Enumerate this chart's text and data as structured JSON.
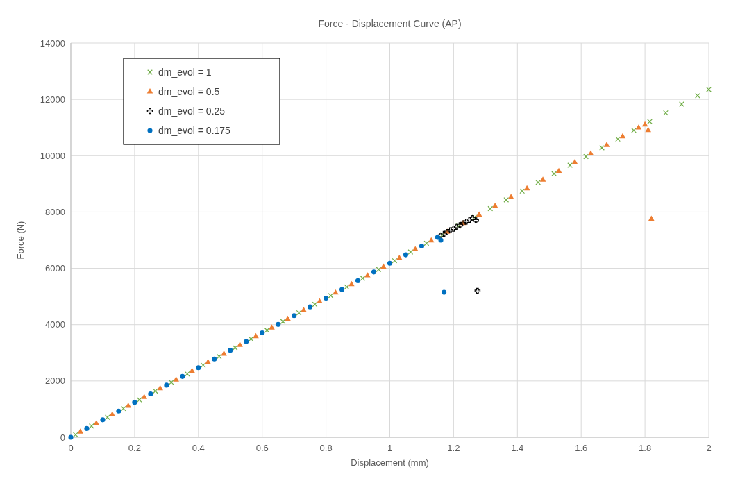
{
  "chart_data": {
    "type": "scatter",
    "title": "Force - Displacement Curve (AP)",
    "xlabel": "Displacement (mm)",
    "ylabel": "Force (N)",
    "xlim": [
      0,
      2
    ],
    "ylim": [
      0,
      14000
    ],
    "xticks": [
      0,
      0.2,
      0.4,
      0.6,
      0.8,
      1,
      1.2,
      1.4,
      1.6,
      1.8,
      2
    ],
    "yticks": [
      0,
      2000,
      4000,
      6000,
      8000,
      10000,
      12000,
      14000
    ],
    "grid": true,
    "legend": "top left",
    "series": [
      {
        "name": "dm_evol = 1",
        "color": "#70ad47",
        "marker": "x",
        "x": [
          0.015,
          0.065,
          0.115,
          0.165,
          0.215,
          0.265,
          0.315,
          0.365,
          0.415,
          0.465,
          0.515,
          0.565,
          0.615,
          0.665,
          0.715,
          0.765,
          0.815,
          0.865,
          0.915,
          0.965,
          1.015,
          1.065,
          1.115,
          1.165,
          1.215,
          1.265,
          1.315,
          1.365,
          1.415,
          1.465,
          1.515,
          1.565,
          1.615,
          1.665,
          1.715,
          1.765,
          1.815,
          1.865,
          1.915,
          1.965,
          2
        ],
        "values": [
          90,
          400,
          710,
          1020,
          1330,
          1640,
          1950,
          2250,
          2560,
          2870,
          3180,
          3490,
          3800,
          4110,
          4420,
          4720,
          5030,
          5340,
          5650,
          5960,
          6270,
          6580,
          6890,
          7190,
          7500,
          7810,
          8120,
          8430,
          8740,
          9050,
          9360,
          9660,
          9970,
          10280,
          10590,
          10900,
          11210,
          11520,
          11830,
          12130,
          12350
        ]
      },
      {
        "name": "dm_evol = 0.5",
        "color": "#ed7d31",
        "marker": "triangle",
        "x": [
          0.03,
          0.08,
          0.13,
          0.18,
          0.23,
          0.28,
          0.33,
          0.38,
          0.43,
          0.48,
          0.53,
          0.58,
          0.63,
          0.68,
          0.73,
          0.78,
          0.83,
          0.88,
          0.93,
          0.98,
          1.03,
          1.08,
          1.13,
          1.18,
          1.23,
          1.28,
          1.33,
          1.38,
          1.43,
          1.48,
          1.53,
          1.58,
          1.63,
          1.68,
          1.73,
          1.78,
          1.8,
          1.81,
          1.82
        ],
        "values": [
          190,
          490,
          800,
          1110,
          1420,
          1730,
          2040,
          2350,
          2660,
          2960,
          3270,
          3580,
          3890,
          4200,
          4510,
          4820,
          5130,
          5430,
          5740,
          6050,
          6360,
          6670,
          6980,
          7290,
          7600,
          7900,
          8210,
          8520,
          8830,
          9140,
          9450,
          9760,
          10070,
          10370,
          10680,
          10990,
          11100,
          10900,
          7750
        ]
      },
      {
        "name": "dm_evol = 0.25",
        "color": "#000000",
        "marker": "cross",
        "x": [
          1.16,
          1.17,
          1.18,
          1.19,
          1.2,
          1.21,
          1.22,
          1.23,
          1.24,
          1.25,
          1.26,
          1.27,
          1.275
        ],
        "values": [
          7160,
          7220,
          7290,
          7350,
          7410,
          7470,
          7530,
          7600,
          7660,
          7720,
          7780,
          7700,
          5200
        ]
      },
      {
        "name": "dm_evol = 0.175",
        "color": "#0070c0",
        "marker": "circle",
        "x": [
          0,
          0.05,
          0.1,
          0.15,
          0.2,
          0.25,
          0.3,
          0.35,
          0.4,
          0.45,
          0.5,
          0.55,
          0.6,
          0.65,
          0.7,
          0.75,
          0.8,
          0.85,
          0.9,
          0.95,
          1,
          1.05,
          1.1,
          1.15,
          1.16,
          1.17
        ],
        "values": [
          0,
          310,
          620,
          930,
          1240,
          1540,
          1850,
          2160,
          2470,
          2780,
          3090,
          3400,
          3710,
          4010,
          4320,
          4630,
          4940,
          5250,
          5560,
          5870,
          6180,
          6480,
          6790,
          7100,
          7000,
          5150
        ]
      }
    ]
  }
}
